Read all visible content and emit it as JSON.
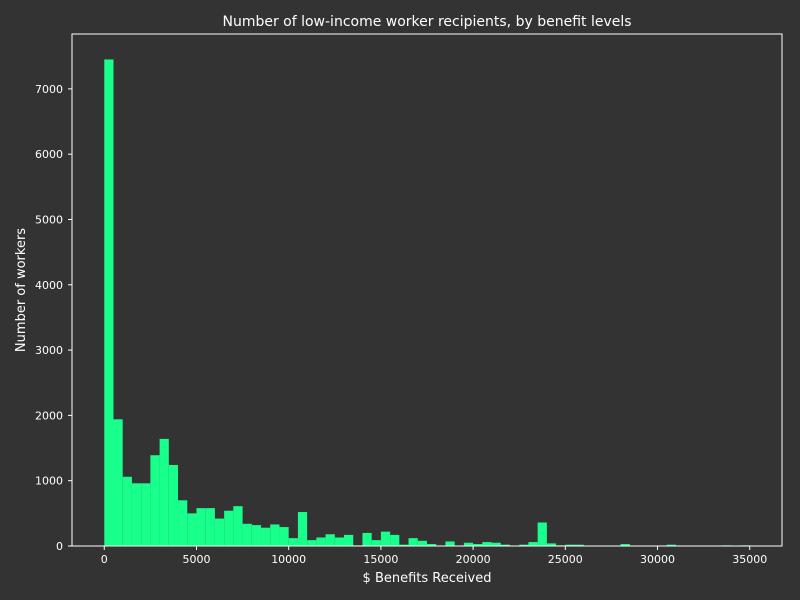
{
  "chart_data": {
    "type": "bar",
    "title": "Number of low-income worker recipients, by benefit levels",
    "xlabel": "$ Benefits Received",
    "ylabel": "Number of workers",
    "xlim": [
      -1750,
      36750
    ],
    "ylim": [
      0,
      7840
    ],
    "bin_width": 500,
    "bin_start": 0,
    "xticks": [
      0,
      5000,
      10000,
      15000,
      20000,
      25000,
      30000,
      35000
    ],
    "yticks": [
      0,
      1000,
      2000,
      3000,
      4000,
      5000,
      6000,
      7000
    ],
    "values": [
      7450,
      1940,
      1060,
      960,
      960,
      1390,
      1640,
      1240,
      700,
      500,
      580,
      580,
      420,
      540,
      610,
      340,
      320,
      280,
      330,
      290,
      120,
      520,
      90,
      130,
      180,
      130,
      170,
      10,
      200,
      90,
      220,
      170,
      20,
      120,
      80,
      30,
      0,
      70,
      0,
      50,
      30,
      60,
      50,
      20,
      0,
      20,
      60,
      360,
      40,
      10,
      20,
      20,
      0,
      0,
      0,
      0,
      30,
      0,
      0,
      0,
      0,
      20,
      0,
      0,
      0,
      0,
      0,
      10,
      0,
      10
    ],
    "grid": false,
    "colors": {
      "bar": "#19ff8c",
      "background": "#333333",
      "text": "#ffffff"
    }
  }
}
